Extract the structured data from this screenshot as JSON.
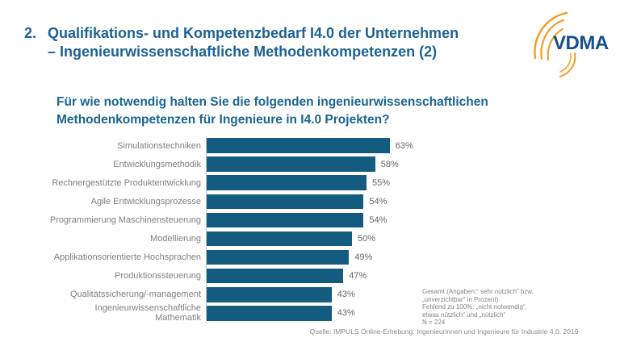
{
  "header": {
    "number": "2.",
    "line1": "Qualifikations- und Kompetenzbedarf I4.0 der Unternehmen",
    "line2": "– Ingenieurwissenschaftliche Methodenkompetenzen (2)"
  },
  "logo": {
    "text": "VDMA"
  },
  "question": {
    "line1": "Für wie notwendig halten Sie die folgenden ingenieurwissenschaftlichen",
    "line2": "Methodenkompetenzen für Ingenieure in I4.0 Projekten?"
  },
  "chart_data": {
    "type": "bar",
    "orientation": "horizontal",
    "categories": [
      "Simulationstechniken",
      "Entwicklungsmethodik",
      "Rechnergestützte Produktentwicklung",
      "Agile Entwicklungsprozesse",
      "Programmierung Maschinensteuerung",
      "Modellierung",
      "Applikationsorientierte Hochsprachen",
      "Produktionssteuerung",
      "Qualitätssicherung/-management",
      "Ingenieurwissenschaftliche\nMathematik"
    ],
    "values": [
      63,
      58,
      55,
      54,
      54,
      50,
      49,
      47,
      43,
      43
    ],
    "value_suffix": "%",
    "xlim": [
      0,
      70
    ],
    "grid": false,
    "legend": false,
    "bar_color": "#135C7F",
    "category_label_color": "#7F7F7F",
    "value_label_color": "#666666"
  },
  "footnote": {
    "lines": [
      "Gesamt (Angaben:“ sehr nützlich“ bzw.",
      "„unverzichtbar“ in Prozent).",
      "Fehlend zu 100%: „nicht notwendig“,",
      "etwas nützlich“ und „nützlich“",
      "N = 224"
    ]
  },
  "source": "Quelle: IMPULS Online-Erhebung: Ingenieurinnen und Ingenieure für Industrie 4.0, 2019",
  "colors": {
    "title_blue": "#1C6294",
    "question_blue": "#1A6492",
    "bar_blue": "#135C7F",
    "axis_line": "#C8C8C8",
    "logo_orange": "#F49B1F",
    "logo_blue": "#174F8C"
  }
}
